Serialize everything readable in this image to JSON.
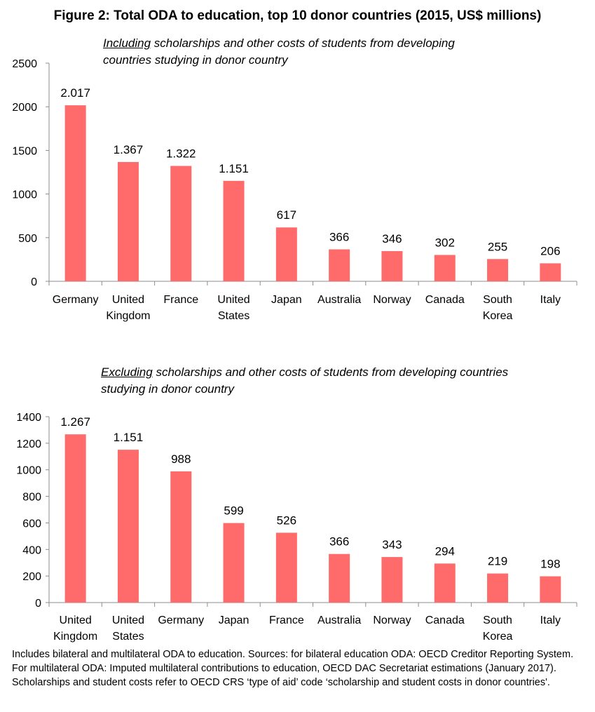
{
  "figure": {
    "title": "Figure 2: Total ODA to education, top 10 donor countries (2015, US$ millions)",
    "footnote": "Includes bilateral and multilateral ODA to education. Sources: for bilateral education ODA: OECD Creditor Reporting System. For multilateral ODA:  Imputed multilateral contributions to education, OECD DAC Secretariat estimations (January 2017). Scholarships and student costs refer to OECD CRS ‘type of aid’ code ‘scholarship and student costs in donor countries'."
  },
  "colors": {
    "bar": "#ff6b6b",
    "axis": "#8c8c8c"
  },
  "chart_data": [
    {
      "type": "bar",
      "subtitle_emph": "Including",
      "subtitle_rest": " scholarships and other costs of students from developing countries studying in donor country",
      "categories": [
        [
          "Germany"
        ],
        [
          "United",
          "Kingdom"
        ],
        [
          "France"
        ],
        [
          "United",
          "States"
        ],
        [
          "Japan"
        ],
        [
          "Australia"
        ],
        [
          "Norway"
        ],
        [
          "Canada"
        ],
        [
          "South",
          "Korea"
        ],
        [
          "Italy"
        ]
      ],
      "values": [
        2017,
        1367,
        1322,
        1151,
        617,
        366,
        346,
        302,
        255,
        206
      ],
      "data_labels": [
        "2.017",
        "1.367",
        "1.322",
        "1.151",
        "617",
        "366",
        "346",
        "302",
        "255",
        "206"
      ],
      "yticks": [
        "0",
        "500",
        "1000",
        "1500",
        "2000",
        "2500"
      ],
      "ylim": [
        0,
        2500
      ]
    },
    {
      "type": "bar",
      "subtitle_emph": "Excluding",
      "subtitle_rest": " scholarships and other costs of students from developing countries studying in donor country",
      "categories": [
        [
          "United",
          "Kingdom"
        ],
        [
          "United",
          "States"
        ],
        [
          "Germany"
        ],
        [
          "Japan"
        ],
        [
          "France"
        ],
        [
          "Australia"
        ],
        [
          "Norway"
        ],
        [
          "Canada"
        ],
        [
          "South",
          "Korea"
        ],
        [
          "Italy"
        ]
      ],
      "values": [
        1267,
        1151,
        988,
        599,
        526,
        366,
        343,
        294,
        219,
        198
      ],
      "data_labels": [
        "1.267",
        "1.151",
        "988",
        "599",
        "526",
        "366",
        "343",
        "294",
        "219",
        "198"
      ],
      "yticks": [
        "0",
        "200",
        "400",
        "600",
        "800",
        "1000",
        "1200",
        "1400"
      ],
      "ylim": [
        0,
        1400
      ]
    }
  ]
}
